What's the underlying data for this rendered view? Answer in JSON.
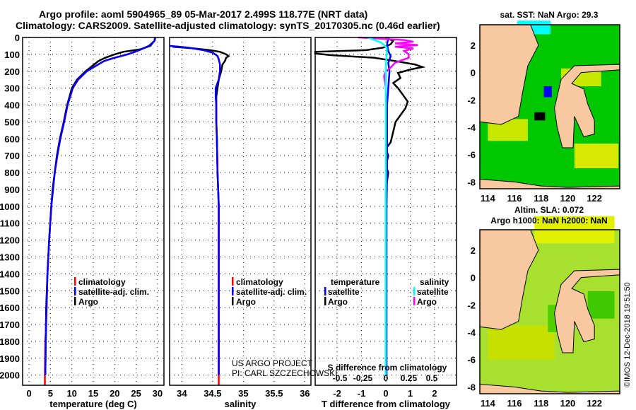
{
  "title_line1": "Argo profile: aoml 5904965_89 05-Mar-2017 2.499S 118.77E (NRT data)",
  "title_line2": "Climatology: CARS2009. Satellite-adjusted climatology: synTS_20170305.nc (0.46d earlier)",
  "credit_line1": "US ARGO PROJECT",
  "credit_line2": "PI: CARL SZCZECHOWSKI",
  "footer": "©IMOS 12-Dec-2018 19:51:50",
  "colors": {
    "climatology": "#ff0000",
    "satellite": "#0000ff",
    "argo": "#000000",
    "sat_s": "#00ffff",
    "argo_s": "#ff00ff",
    "land": "#f8c8a0",
    "sea": "#00c800"
  },
  "chart_data": [
    {
      "type": "line",
      "id": "temperature",
      "xlabel": "temperature (deg C)",
      "xlim": [
        -1.5,
        31.5
      ],
      "xticks": [
        0,
        5,
        10,
        15,
        20,
        25,
        30
      ],
      "ylim": [
        0,
        2060
      ],
      "yticks": [
        0,
        100,
        200,
        300,
        400,
        500,
        600,
        700,
        800,
        900,
        1000,
        1100,
        1200,
        1300,
        1400,
        1500,
        1600,
        1700,
        1800,
        1900,
        2000
      ],
      "grid": true,
      "legend": [
        "climatology",
        "satellite-adj. clim.",
        "Argo"
      ],
      "series": [
        {
          "name": "Argo",
          "color": "#000000",
          "depth": [
            0,
            20,
            50,
            70,
            85,
            100,
            120,
            140,
            160,
            200,
            250,
            300,
            400,
            500,
            600,
            700,
            800,
            900,
            1000,
            1200,
            1400,
            1600,
            1800,
            2000
          ],
          "values": [
            29.4,
            29.3,
            28.3,
            26,
            22,
            20,
            17.8,
            16.2,
            15.2,
            13.2,
            11.2,
            10,
            8.9,
            8.1,
            7.2,
            6.5,
            6,
            5.5,
            5.2,
            4.7,
            4.3,
            4,
            3.9,
            3.8
          ]
        },
        {
          "name": "climatology",
          "color": "#ff0000",
          "depth": [
            0,
            20,
            50,
            80,
            100,
            120,
            140,
            170,
            200,
            250,
            300,
            400,
            500,
            600,
            700,
            800,
            900,
            1000,
            1200,
            1400,
            1600,
            1750,
            1800,
            2000,
            2060
          ],
          "values": [
            29.5,
            29.3,
            28,
            25.3,
            23,
            20,
            17.5,
            15.5,
            13.5,
            11.5,
            10.2,
            9,
            8.2,
            7.3,
            6.6,
            6,
            5.6,
            5.2,
            4.7,
            4.3,
            4.1,
            3.9,
            3.8,
            3.7,
            3.7
          ]
        },
        {
          "name": "satellite-adj. clim.",
          "color": "#0000ff",
          "depth": [
            0,
            20,
            50,
            80,
            100,
            120,
            140,
            170,
            200,
            250,
            300,
            400,
            500,
            600,
            700,
            800,
            900,
            1000,
            1200,
            1400,
            1600,
            1800,
            2000
          ],
          "values": [
            29.5,
            29.3,
            28,
            25.3,
            23,
            20,
            17.5,
            15.5,
            13.5,
            11.4,
            10.2,
            9,
            8.2,
            7.3,
            6.6,
            6,
            5.6,
            5.2,
            4.7,
            4.3,
            4.1,
            3.9,
            3.8
          ]
        }
      ]
    },
    {
      "type": "line",
      "id": "salinity",
      "xlabel": "salinity",
      "xlim": [
        33.8,
        36.1
      ],
      "xticks": [
        34,
        34.5,
        35,
        35.5,
        36
      ],
      "ylim": [
        0,
        2060
      ],
      "grid": true,
      "legend": [
        "climatology",
        "satellite-adj. clim.",
        "Argo"
      ],
      "series": [
        {
          "name": "Argo",
          "color": "#000000",
          "depth": [
            55,
            65,
            75,
            85,
            100,
            110,
            120,
            140,
            160,
            200,
            250,
            300,
            350,
            400,
            500,
            600,
            800,
            1000,
            1500,
            2000
          ],
          "values": [
            33.85,
            34.2,
            34.45,
            34.62,
            34.72,
            34.76,
            34.72,
            34.7,
            34.66,
            34.64,
            34.6,
            34.58,
            34.56,
            34.56,
            34.56,
            34.57,
            34.58,
            34.6,
            34.6,
            34.6
          ]
        },
        {
          "name": "climatology",
          "color": "#ff0000",
          "depth": [
            50,
            60,
            75,
            90,
            110,
            130,
            160,
            200,
            250,
            300,
            350,
            400,
            500,
            600,
            800,
            1000,
            1500,
            2000,
            2060
          ],
          "values": [
            33.8,
            34.1,
            34.35,
            34.5,
            34.58,
            34.6,
            34.62,
            34.62,
            34.6,
            34.55,
            34.55,
            34.56,
            34.56,
            34.57,
            34.58,
            34.6,
            34.6,
            34.6,
            34.6
          ]
        },
        {
          "name": "satellite-adj. clim.",
          "color": "#0000ff",
          "depth": [
            50,
            60,
            75,
            90,
            110,
            130,
            160,
            200,
            250,
            300,
            350,
            400,
            500,
            600,
            800,
            1000,
            1500,
            2000
          ],
          "values": [
            33.8,
            34.1,
            34.35,
            34.5,
            34.58,
            34.6,
            34.62,
            34.62,
            34.6,
            34.55,
            34.55,
            34.56,
            34.56,
            34.57,
            34.58,
            34.6,
            34.6,
            34.6
          ]
        }
      ]
    },
    {
      "type": "line",
      "id": "difference",
      "xlabel": "T difference from climatology",
      "x2label": "S difference from climatology",
      "xlim": [
        -2.9,
        2.9
      ],
      "xticks": [
        -2,
        -1,
        0,
        1,
        2
      ],
      "x2lim": [
        -0.77,
        0.77
      ],
      "x2ticks": [
        "-0.5",
        "-0.25",
        "0",
        "0.25",
        "0.5"
      ],
      "ylim": [
        0,
        2060
      ],
      "grid": true,
      "legend": {
        "temperature_title": "temperature",
        "salinity_title": "salinity",
        "items": [
          "satellite",
          "Argo",
          "satellite",
          "Argo"
        ]
      },
      "series": [
        {
          "name": "T Argo",
          "color": "#000000",
          "axis": "T",
          "depth": [
            0,
            20,
            40,
            60,
            75,
            85,
            95,
            105,
            120,
            140,
            160,
            175,
            190,
            210,
            240,
            270,
            300,
            340,
            380,
            420,
            460,
            500,
            560,
            620,
            660,
            700,
            760,
            800,
            900,
            1000,
            2000
          ],
          "values": [
            0,
            0.3,
            0.2,
            -0.1,
            -0.8,
            -2.9,
            -2.9,
            -2.2,
            -0.5,
            0.4,
            1.2,
            1.5,
            1.0,
            0.5,
            0.6,
            0.3,
            0.5,
            0.7,
            0.9,
            0.8,
            0.6,
            0.4,
            0.3,
            0.2,
            0,
            0.1,
            0,
            0.1,
            0,
            0,
            0
          ]
        },
        {
          "name": "T satellite",
          "color": "#0000ff",
          "axis": "T",
          "depth": [
            0,
            40,
            80,
            110,
            150,
            200,
            300,
            400,
            600,
            800,
            1000,
            2000
          ],
          "values": [
            0.1,
            0.05,
            0.1,
            0.2,
            0.1,
            0.15,
            0.1,
            0.05,
            0.05,
            0.05,
            0.03,
            0.03
          ]
        },
        {
          "name": "S Argo",
          "color": "#ff00ff",
          "axis": "S",
          "depth": [
            0,
            15,
            25,
            35,
            45,
            55,
            65,
            80,
            100,
            120,
            150,
            180,
            200,
            230,
            260,
            300
          ],
          "values": [
            -0.3,
            0.2,
            0.3,
            0.1,
            0.35,
            0.1,
            0.3,
            0.2,
            0.25,
            0.25,
            0.1,
            0.05,
            0,
            -0.02,
            -0.01,
            0
          ]
        },
        {
          "name": "S satellite",
          "color": "#00ffff",
          "axis": "S",
          "depth": [
            0,
            30,
            60,
            100,
            150,
            200,
            300,
            400,
            1000,
            2000
          ],
          "values": [
            -0.2,
            -0.05,
            0.01,
            0.01,
            0.0,
            0,
            0,
            0,
            0,
            0
          ]
        }
      ]
    },
    {
      "type": "map",
      "id": "sst",
      "title": "sat. SST: NaN Argo: 29.3",
      "xticks": [
        114,
        116,
        118,
        120,
        122
      ],
      "yticks": [
        2,
        0,
        -2,
        -4,
        -6,
        -8
      ],
      "xlim": [
        113.4,
        123.9
      ],
      "ylim": [
        -8.5,
        3.5
      ]
    },
    {
      "type": "map",
      "id": "sla",
      "title_line1": "Altim. SLA: 0.072",
      "title_line2": "Argo h1000: NaN h2000: NaN",
      "xticks": [
        114,
        116,
        118,
        120,
        122
      ],
      "yticks": [
        2,
        0,
        -2,
        -4,
        -6,
        -8
      ],
      "xlim": [
        113.4,
        123.9
      ],
      "ylim": [
        -8.5,
        3.5
      ]
    }
  ]
}
